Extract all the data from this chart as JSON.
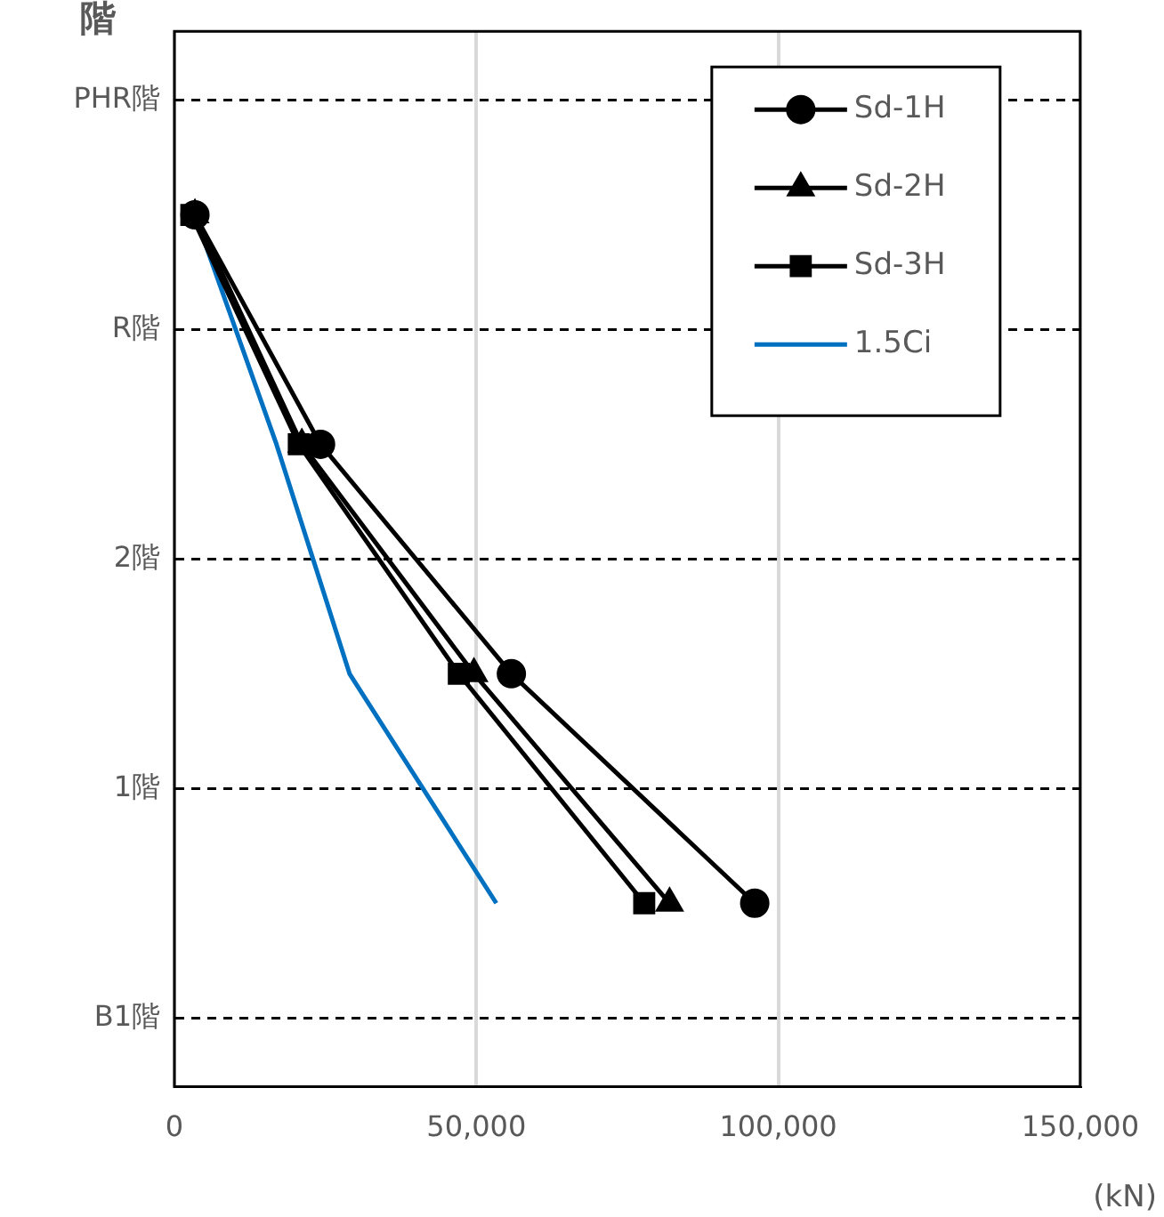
{
  "chart_data": {
    "type": "line",
    "orientation": "horizontal",
    "ylabel": "階",
    "xlabel": "(kN)",
    "xlim": [
      0,
      150000
    ],
    "xticks": [
      {
        "value": 0,
        "label": "0"
      },
      {
        "value": 50000,
        "label": "50,000"
      },
      {
        "value": 100000,
        "label": "100,000"
      },
      {
        "value": 150000,
        "label": "150,000"
      }
    ],
    "categories": [
      "PHR階",
      null,
      "R階",
      null,
      "2階",
      null,
      "1階",
      null,
      "B1階"
    ],
    "grid": true,
    "legend": "top right",
    "line_style": "solid",
    "series": [
      {
        "name": "Sd-1H",
        "color": "#000000",
        "marker": "circle",
        "values": [
          null,
          3400,
          null,
          24200,
          null,
          55800,
          null,
          96100,
          null
        ]
      },
      {
        "name": "Sd-2H",
        "color": "#000000",
        "marker": "triangle",
        "values": [
          null,
          3400,
          null,
          21100,
          null,
          49600,
          null,
          82000,
          null
        ]
      },
      {
        "name": "Sd-3H",
        "color": "#000000",
        "marker": "square",
        "values": [
          null,
          2800,
          null,
          20600,
          null,
          47100,
          null,
          77800,
          null
        ]
      },
      {
        "name": "1.5Ci",
        "color": "#0070c0",
        "marker": "none",
        "values": [
          null,
          3400,
          null,
          16900,
          null,
          29000,
          null,
          53300,
          null
        ]
      }
    ]
  }
}
